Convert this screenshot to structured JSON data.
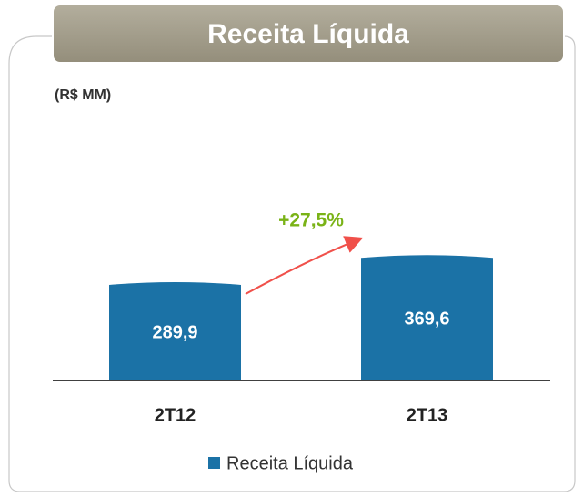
{
  "chart_data": {
    "type": "bar",
    "title": "Receita Líquida",
    "subtitle": "(R$ MM)",
    "annotation": "+27,5%",
    "categories": [
      "2T12",
      "2T13"
    ],
    "series": [
      {
        "name": "Receita Líquida",
        "color": "#1b72a6",
        "values": [
          289.9,
          369.6
        ],
        "value_labels": [
          "289,9",
          "369,6"
        ]
      }
    ],
    "legend": "bottom"
  }
}
